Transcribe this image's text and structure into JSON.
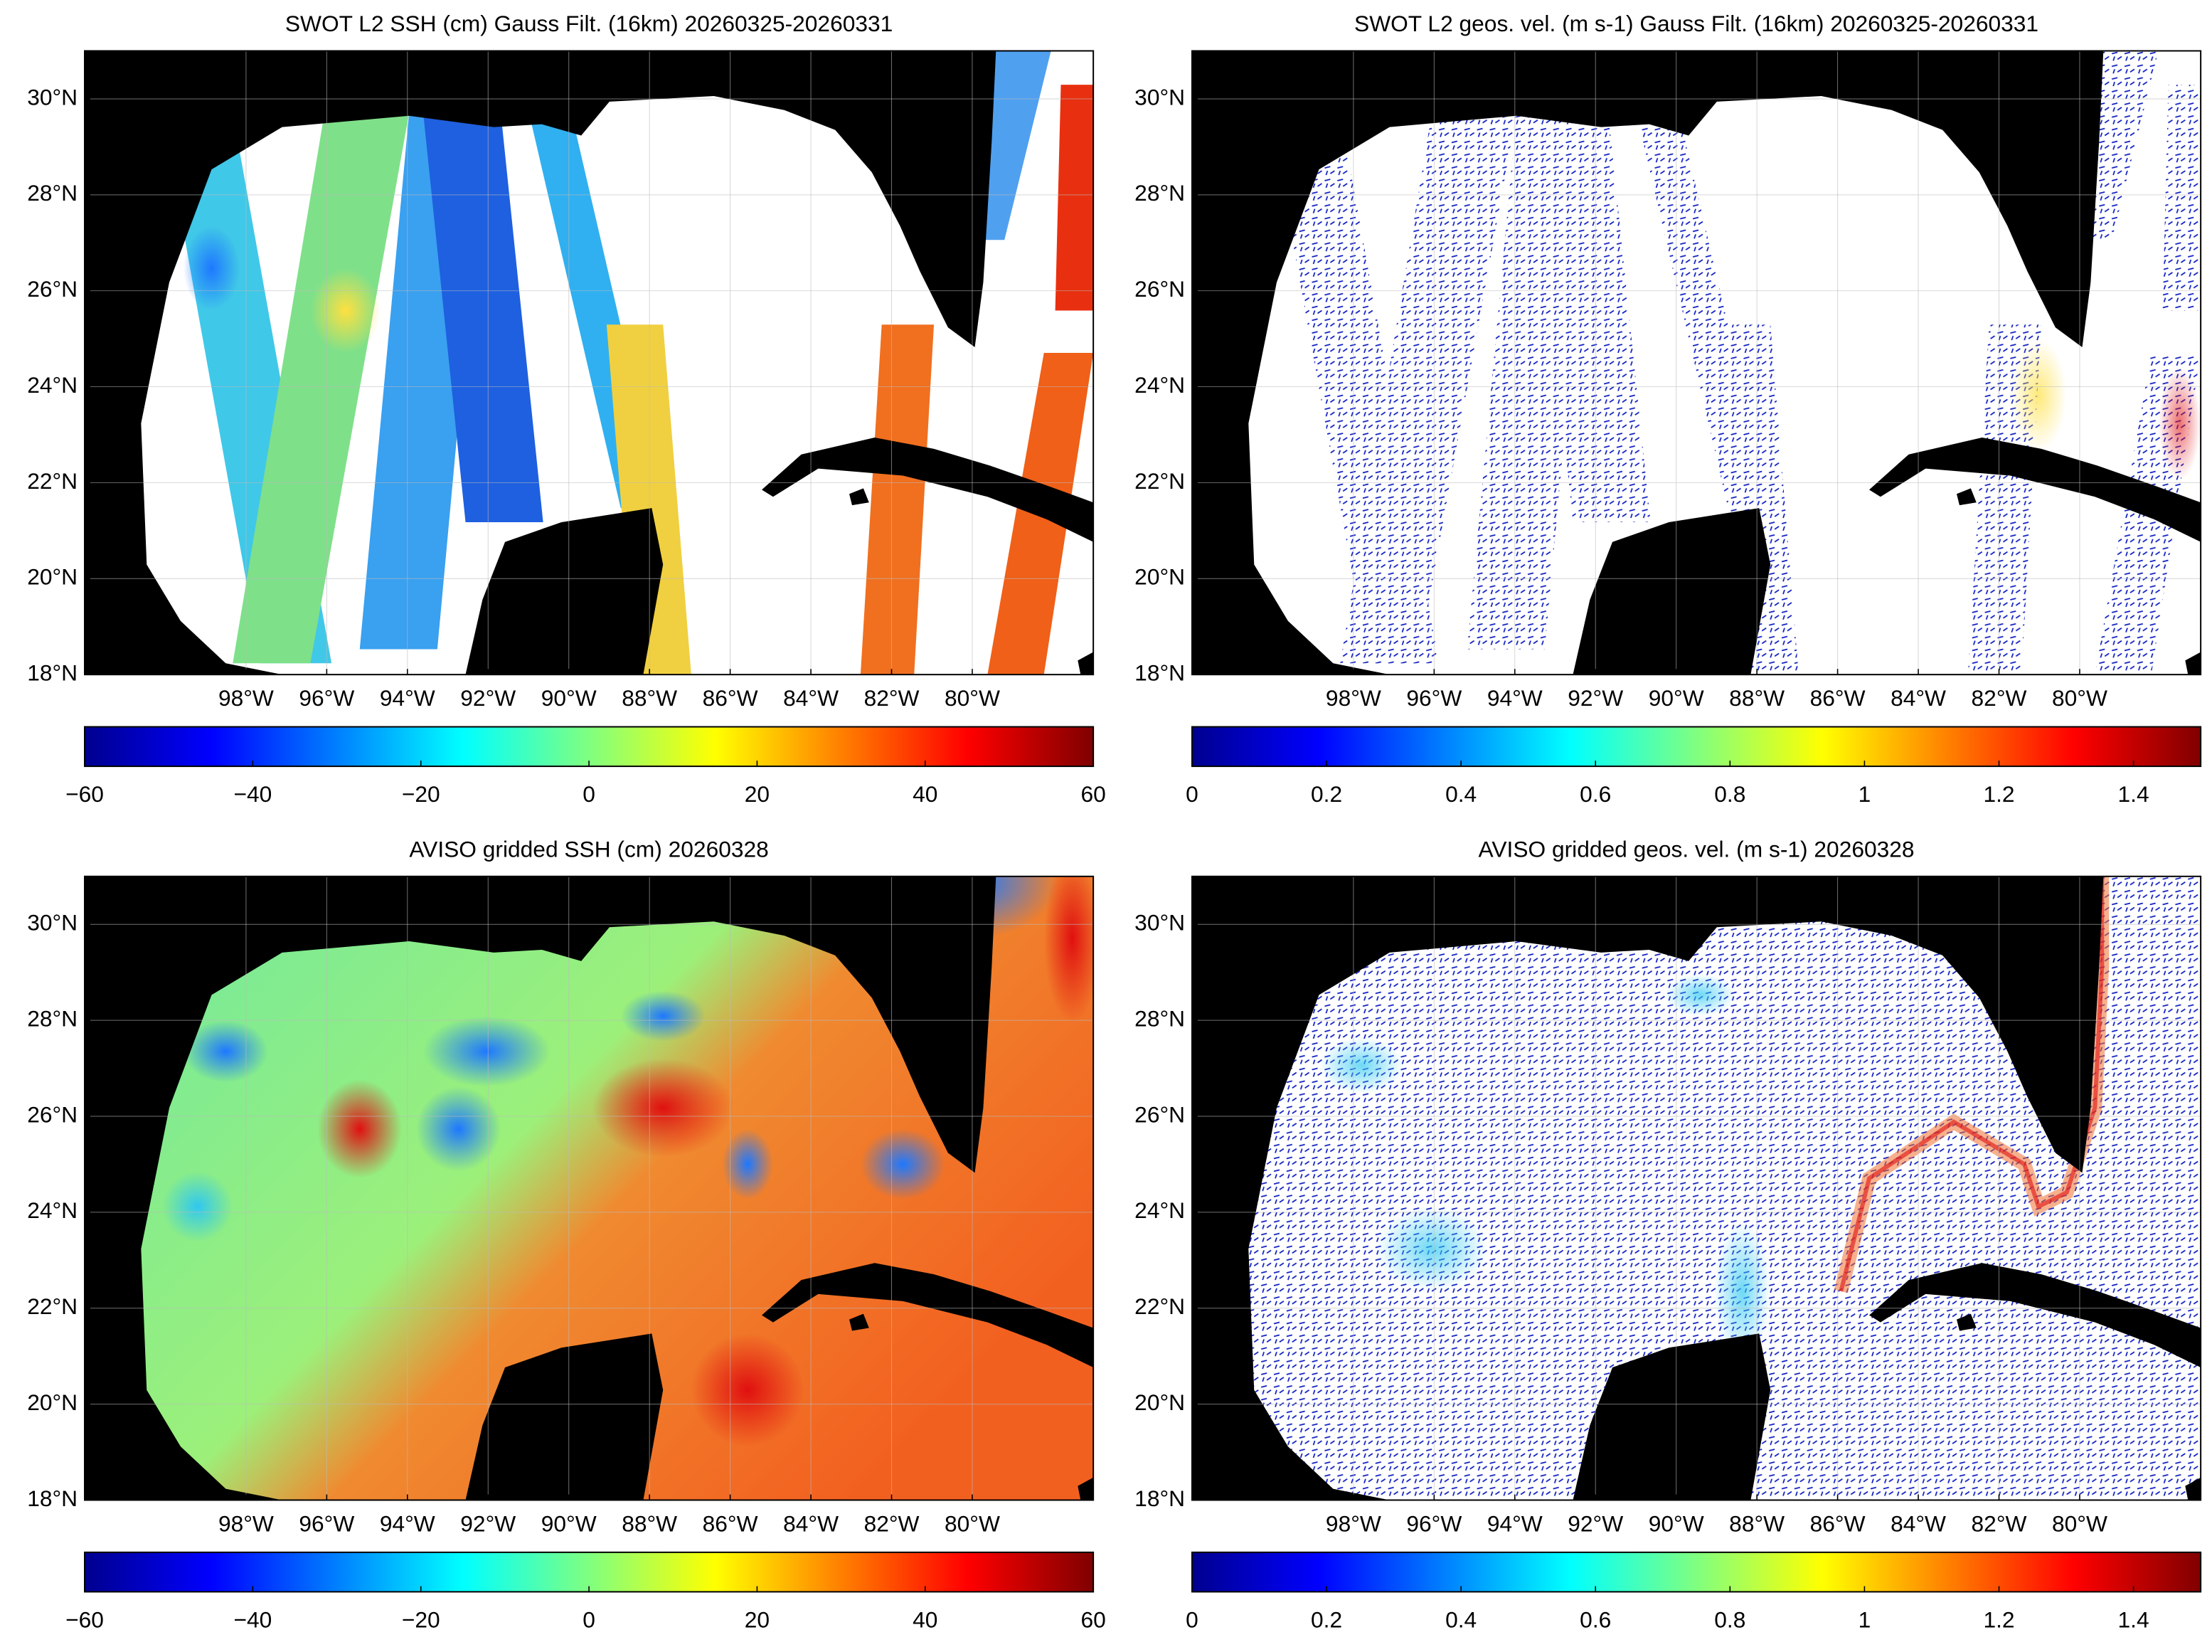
{
  "panels": [
    {
      "title": "SWOT L2 SSH (cm) Gauss Filt. (16km) 20260325-20260331",
      "xlim": [
        -102,
        -77
      ],
      "xticks": [
        {
          "value": -98,
          "label": "98°W"
        },
        {
          "value": -96,
          "label": "96°W"
        },
        {
          "value": -94,
          "label": "94°W"
        },
        {
          "value": -92,
          "label": "92°W"
        },
        {
          "value": -90,
          "label": "90°W"
        },
        {
          "value": -88,
          "label": "88°W"
        },
        {
          "value": -86,
          "label": "86°W"
        },
        {
          "value": -84,
          "label": "84°W"
        },
        {
          "value": -82,
          "label": "82°W"
        },
        {
          "value": -80,
          "label": "80°W"
        }
      ],
      "ylim": [
        18,
        31
      ],
      "yticks": [
        {
          "value": 18,
          "label": "18°N"
        },
        {
          "value": 20,
          "label": "20°N"
        },
        {
          "value": 22,
          "label": "22°N"
        },
        {
          "value": 24,
          "label": "24°N"
        },
        {
          "value": 26,
          "label": "26°N"
        },
        {
          "value": 28,
          "label": "28°N"
        },
        {
          "value": 30,
          "label": "30°N"
        }
      ],
      "colorbar": {
        "lim": [
          -60,
          60
        ],
        "ticks": [
          {
            "value": -60,
            "label": "−60"
          },
          {
            "value": -40,
            "label": "−40"
          },
          {
            "value": -20,
            "label": "−20"
          },
          0,
          20,
          40,
          60
        ]
      }
    },
    {
      "title": "SWOT L2 geos. vel. (m s-1) Gauss Filt. (16km) 20260325-20260331",
      "xlim": [
        -102,
        -77
      ],
      "xticks": [
        {
          "value": -98,
          "label": "98°W"
        },
        {
          "value": -96,
          "label": "96°W"
        },
        {
          "value": -94,
          "label": "94°W"
        },
        {
          "value": -92,
          "label": "92°W"
        },
        {
          "value": -90,
          "label": "90°W"
        },
        {
          "value": -88,
          "label": "88°W"
        },
        {
          "value": -86,
          "label": "86°W"
        },
        {
          "value": -84,
          "label": "84°W"
        },
        {
          "value": -82,
          "label": "82°W"
        },
        {
          "value": -80,
          "label": "80°W"
        }
      ],
      "ylim": [
        18,
        31
      ],
      "yticks": [
        {
          "value": 18,
          "label": "18°N"
        },
        {
          "value": 20,
          "label": "20°N"
        },
        {
          "value": 22,
          "label": "22°N"
        },
        {
          "value": 24,
          "label": "24°N"
        },
        {
          "value": 26,
          "label": "26°N"
        },
        {
          "value": 28,
          "label": "28°N"
        },
        {
          "value": 30,
          "label": "30°N"
        }
      ],
      "colorbar": {
        "lim": [
          0,
          1.5
        ],
        "ticks": [
          0,
          0.2,
          0.4,
          0.6,
          0.8,
          1,
          1.2,
          1.4
        ]
      }
    },
    {
      "title": "AVISO gridded SSH (cm) 20260328",
      "xlim": [
        -102,
        -77
      ],
      "xticks": [
        {
          "value": -98,
          "label": "98°W"
        },
        {
          "value": -96,
          "label": "96°W"
        },
        {
          "value": -94,
          "label": "94°W"
        },
        {
          "value": -92,
          "label": "92°W"
        },
        {
          "value": -90,
          "label": "90°W"
        },
        {
          "value": -88,
          "label": "88°W"
        },
        {
          "value": -86,
          "label": "86°W"
        },
        {
          "value": -84,
          "label": "84°W"
        },
        {
          "value": -82,
          "label": "82°W"
        },
        {
          "value": -80,
          "label": "80°W"
        }
      ],
      "ylim": [
        18,
        31
      ],
      "yticks": [
        {
          "value": 18,
          "label": "18°N"
        },
        {
          "value": 20,
          "label": "20°N"
        },
        {
          "value": 22,
          "label": "22°N"
        },
        {
          "value": 24,
          "label": "24°N"
        },
        {
          "value": 26,
          "label": "26°N"
        },
        {
          "value": 28,
          "label": "28°N"
        },
        {
          "value": 30,
          "label": "30°N"
        }
      ],
      "colorbar": {
        "lim": [
          -60,
          60
        ],
        "ticks": [
          {
            "value": -60,
            "label": "−60"
          },
          {
            "value": -40,
            "label": "−40"
          },
          {
            "value": -20,
            "label": "−20"
          },
          0,
          20,
          40,
          60
        ]
      }
    },
    {
      "title": "AVISO gridded geos. vel. (m s-1)  20260328",
      "xlim": [
        -102,
        -77
      ],
      "xticks": [
        {
          "value": -98,
          "label": "98°W"
        },
        {
          "value": -96,
          "label": "96°W"
        },
        {
          "value": -94,
          "label": "94°W"
        },
        {
          "value": -92,
          "label": "92°W"
        },
        {
          "value": -90,
          "label": "90°W"
        },
        {
          "value": -88,
          "label": "88°W"
        },
        {
          "value": -86,
          "label": "86°W"
        },
        {
          "value": -84,
          "label": "84°W"
        },
        {
          "value": -82,
          "label": "82°W"
        },
        {
          "value": -80,
          "label": "80°W"
        }
      ],
      "ylim": [
        18,
        31
      ],
      "yticks": [
        {
          "value": 18,
          "label": "18°N"
        },
        {
          "value": 20,
          "label": "20°N"
        },
        {
          "value": 22,
          "label": "22°N"
        },
        {
          "value": 24,
          "label": "24°N"
        },
        {
          "value": 26,
          "label": "26°N"
        },
        {
          "value": 28,
          "label": "28°N"
        },
        {
          "value": 30,
          "label": "30°N"
        }
      ],
      "colorbar": {
        "lim": [
          0,
          1.5
        ],
        "ticks": [
          0,
          0.2,
          0.4,
          0.6,
          0.8,
          1,
          1.2,
          1.4
        ]
      }
    }
  ]
}
